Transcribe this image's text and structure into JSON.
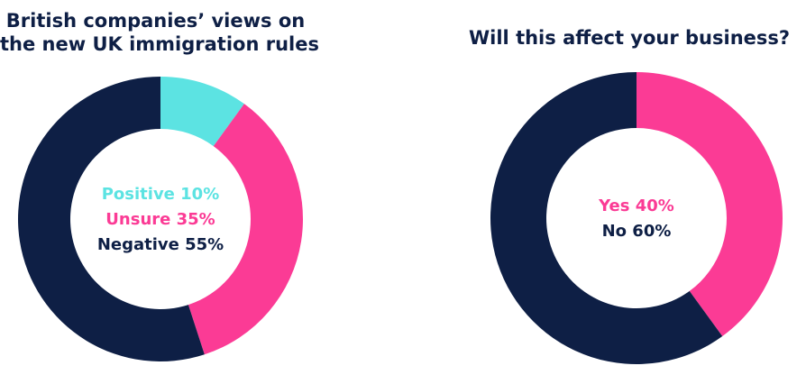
{
  "colors": {
    "navy": "#0e1f45",
    "pink": "#fb3b95",
    "cyan": "#5ce3e2",
    "background": "#ffffff"
  },
  "chart_data": [
    {
      "type": "pie",
      "title": "British companies’ views on the new UK immigration rules",
      "title_lines": [
        "British companies’ views on",
        "the new UK immigration rules"
      ],
      "donut": true,
      "legend": "center",
      "slices": [
        {
          "label": "Positive",
          "value": 10,
          "display": "Positive 10%",
          "color": "#5ce3e2"
        },
        {
          "label": "Unsure",
          "value": 35,
          "display": "Unsure 35%",
          "color": "#fb3b95"
        },
        {
          "label": "Negative",
          "value": 55,
          "display": "Negative 55%",
          "color": "#0e1f45"
        }
      ]
    },
    {
      "type": "pie",
      "title": "Will this affect your business?",
      "title_lines": [
        "Will this affect your business?"
      ],
      "donut": true,
      "legend": "center",
      "slices": [
        {
          "label": "Yes",
          "value": 40,
          "display": "Yes 40%",
          "color": "#fb3b95"
        },
        {
          "label": "No",
          "value": 60,
          "display": "No 60%",
          "color": "#0e1f45"
        }
      ]
    }
  ]
}
